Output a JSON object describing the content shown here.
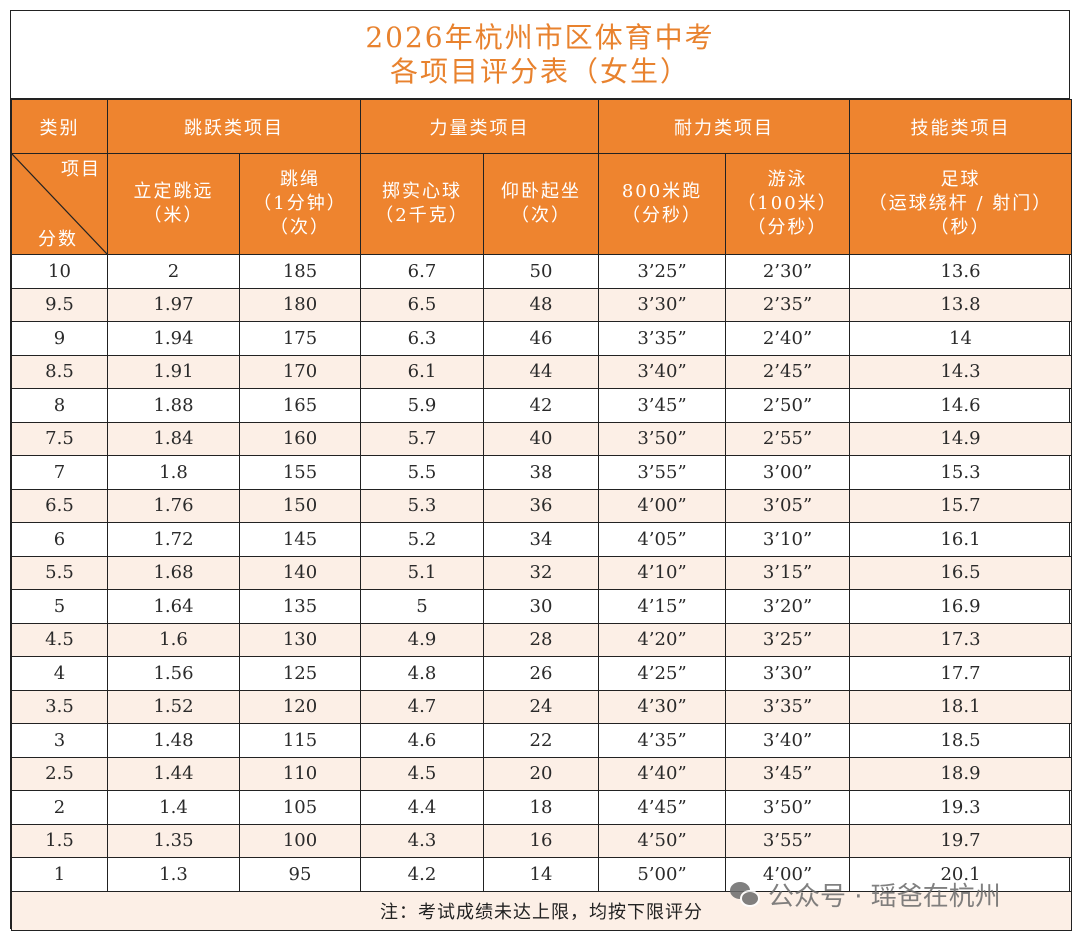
{
  "title": {
    "line1": "2026年杭州市区体育中考",
    "line2": "各项目评分表（女生）"
  },
  "colors": {
    "header_bg": "#EE842F",
    "title_text": "#E8822E",
    "alt_row_bg": "#FCEFE6"
  },
  "header": {
    "category_label": "类别",
    "groups": [
      "跳跃类项目",
      "力量类项目",
      "耐力类项目",
      "技能类项目"
    ],
    "diag_top": "项目",
    "diag_bottom": "分数",
    "items": [
      {
        "l1": "立定跳远",
        "l2": "（米）",
        "l3": ""
      },
      {
        "l1": "跳绳",
        "l2": "（1分钟）",
        "l3": "（次）"
      },
      {
        "l1": "掷实心球",
        "l2": "（2千克）",
        "l3": ""
      },
      {
        "l1": "仰卧起坐",
        "l2": "（次）",
        "l3": ""
      },
      {
        "l1": "800米跑",
        "l2": "（分秒）",
        "l3": ""
      },
      {
        "l1": "游泳",
        "l2": "（100米）",
        "l3": "（分秒）"
      },
      {
        "l1": "足球",
        "l2": "（运球绕杆 / 射门）",
        "l3": "（秒）"
      }
    ]
  },
  "rows": [
    [
      "10",
      "2",
      "185",
      "6.7",
      "50",
      "3’25”",
      "2’30”",
      "13.6"
    ],
    [
      "9.5",
      "1.97",
      "180",
      "6.5",
      "48",
      "3’30”",
      "2’35”",
      "13.8"
    ],
    [
      "9",
      "1.94",
      "175",
      "6.3",
      "46",
      "3’35”",
      "2’40”",
      "14"
    ],
    [
      "8.5",
      "1.91",
      "170",
      "6.1",
      "44",
      "3’40”",
      "2’45”",
      "14.3"
    ],
    [
      "8",
      "1.88",
      "165",
      "5.9",
      "42",
      "3’45”",
      "2’50”",
      "14.6"
    ],
    [
      "7.5",
      "1.84",
      "160",
      "5.7",
      "40",
      "3’50”",
      "2’55”",
      "14.9"
    ],
    [
      "7",
      "1.8",
      "155",
      "5.5",
      "38",
      "3’55”",
      "3’00”",
      "15.3"
    ],
    [
      "6.5",
      "1.76",
      "150",
      "5.3",
      "36",
      "4’00”",
      "3’05”",
      "15.7"
    ],
    [
      "6",
      "1.72",
      "145",
      "5.2",
      "34",
      "4’05”",
      "3’10”",
      "16.1"
    ],
    [
      "5.5",
      "1.68",
      "140",
      "5.1",
      "32",
      "4’10”",
      "3’15”",
      "16.5"
    ],
    [
      "5",
      "1.64",
      "135",
      "5",
      "30",
      "4’15”",
      "3’20”",
      "16.9"
    ],
    [
      "4.5",
      "1.6",
      "130",
      "4.9",
      "28",
      "4’20”",
      "3’25”",
      "17.3"
    ],
    [
      "4",
      "1.56",
      "125",
      "4.8",
      "26",
      "4’25”",
      "3’30”",
      "17.7"
    ],
    [
      "3.5",
      "1.52",
      "120",
      "4.7",
      "24",
      "4’30”",
      "3’35”",
      "18.1"
    ],
    [
      "3",
      "1.48",
      "115",
      "4.6",
      "22",
      "4’35”",
      "3’40”",
      "18.5"
    ],
    [
      "2.5",
      "1.44",
      "110",
      "4.5",
      "20",
      "4’40”",
      "3’45”",
      "18.9"
    ],
    [
      "2",
      "1.4",
      "105",
      "4.4",
      "18",
      "4’45”",
      "3’50”",
      "19.3"
    ],
    [
      "1.5",
      "1.35",
      "100",
      "4.3",
      "16",
      "4’50”",
      "3’55”",
      "19.7"
    ],
    [
      "1",
      "1.3",
      "95",
      "4.2",
      "14",
      "5’00”",
      "4’00”",
      "20.1"
    ]
  ],
  "note": "注：考试成绩未达上限，均按下限评分",
  "watermark": {
    "icon": "wechat-icon",
    "text": "公众号 · 瑶爸在杭州"
  }
}
